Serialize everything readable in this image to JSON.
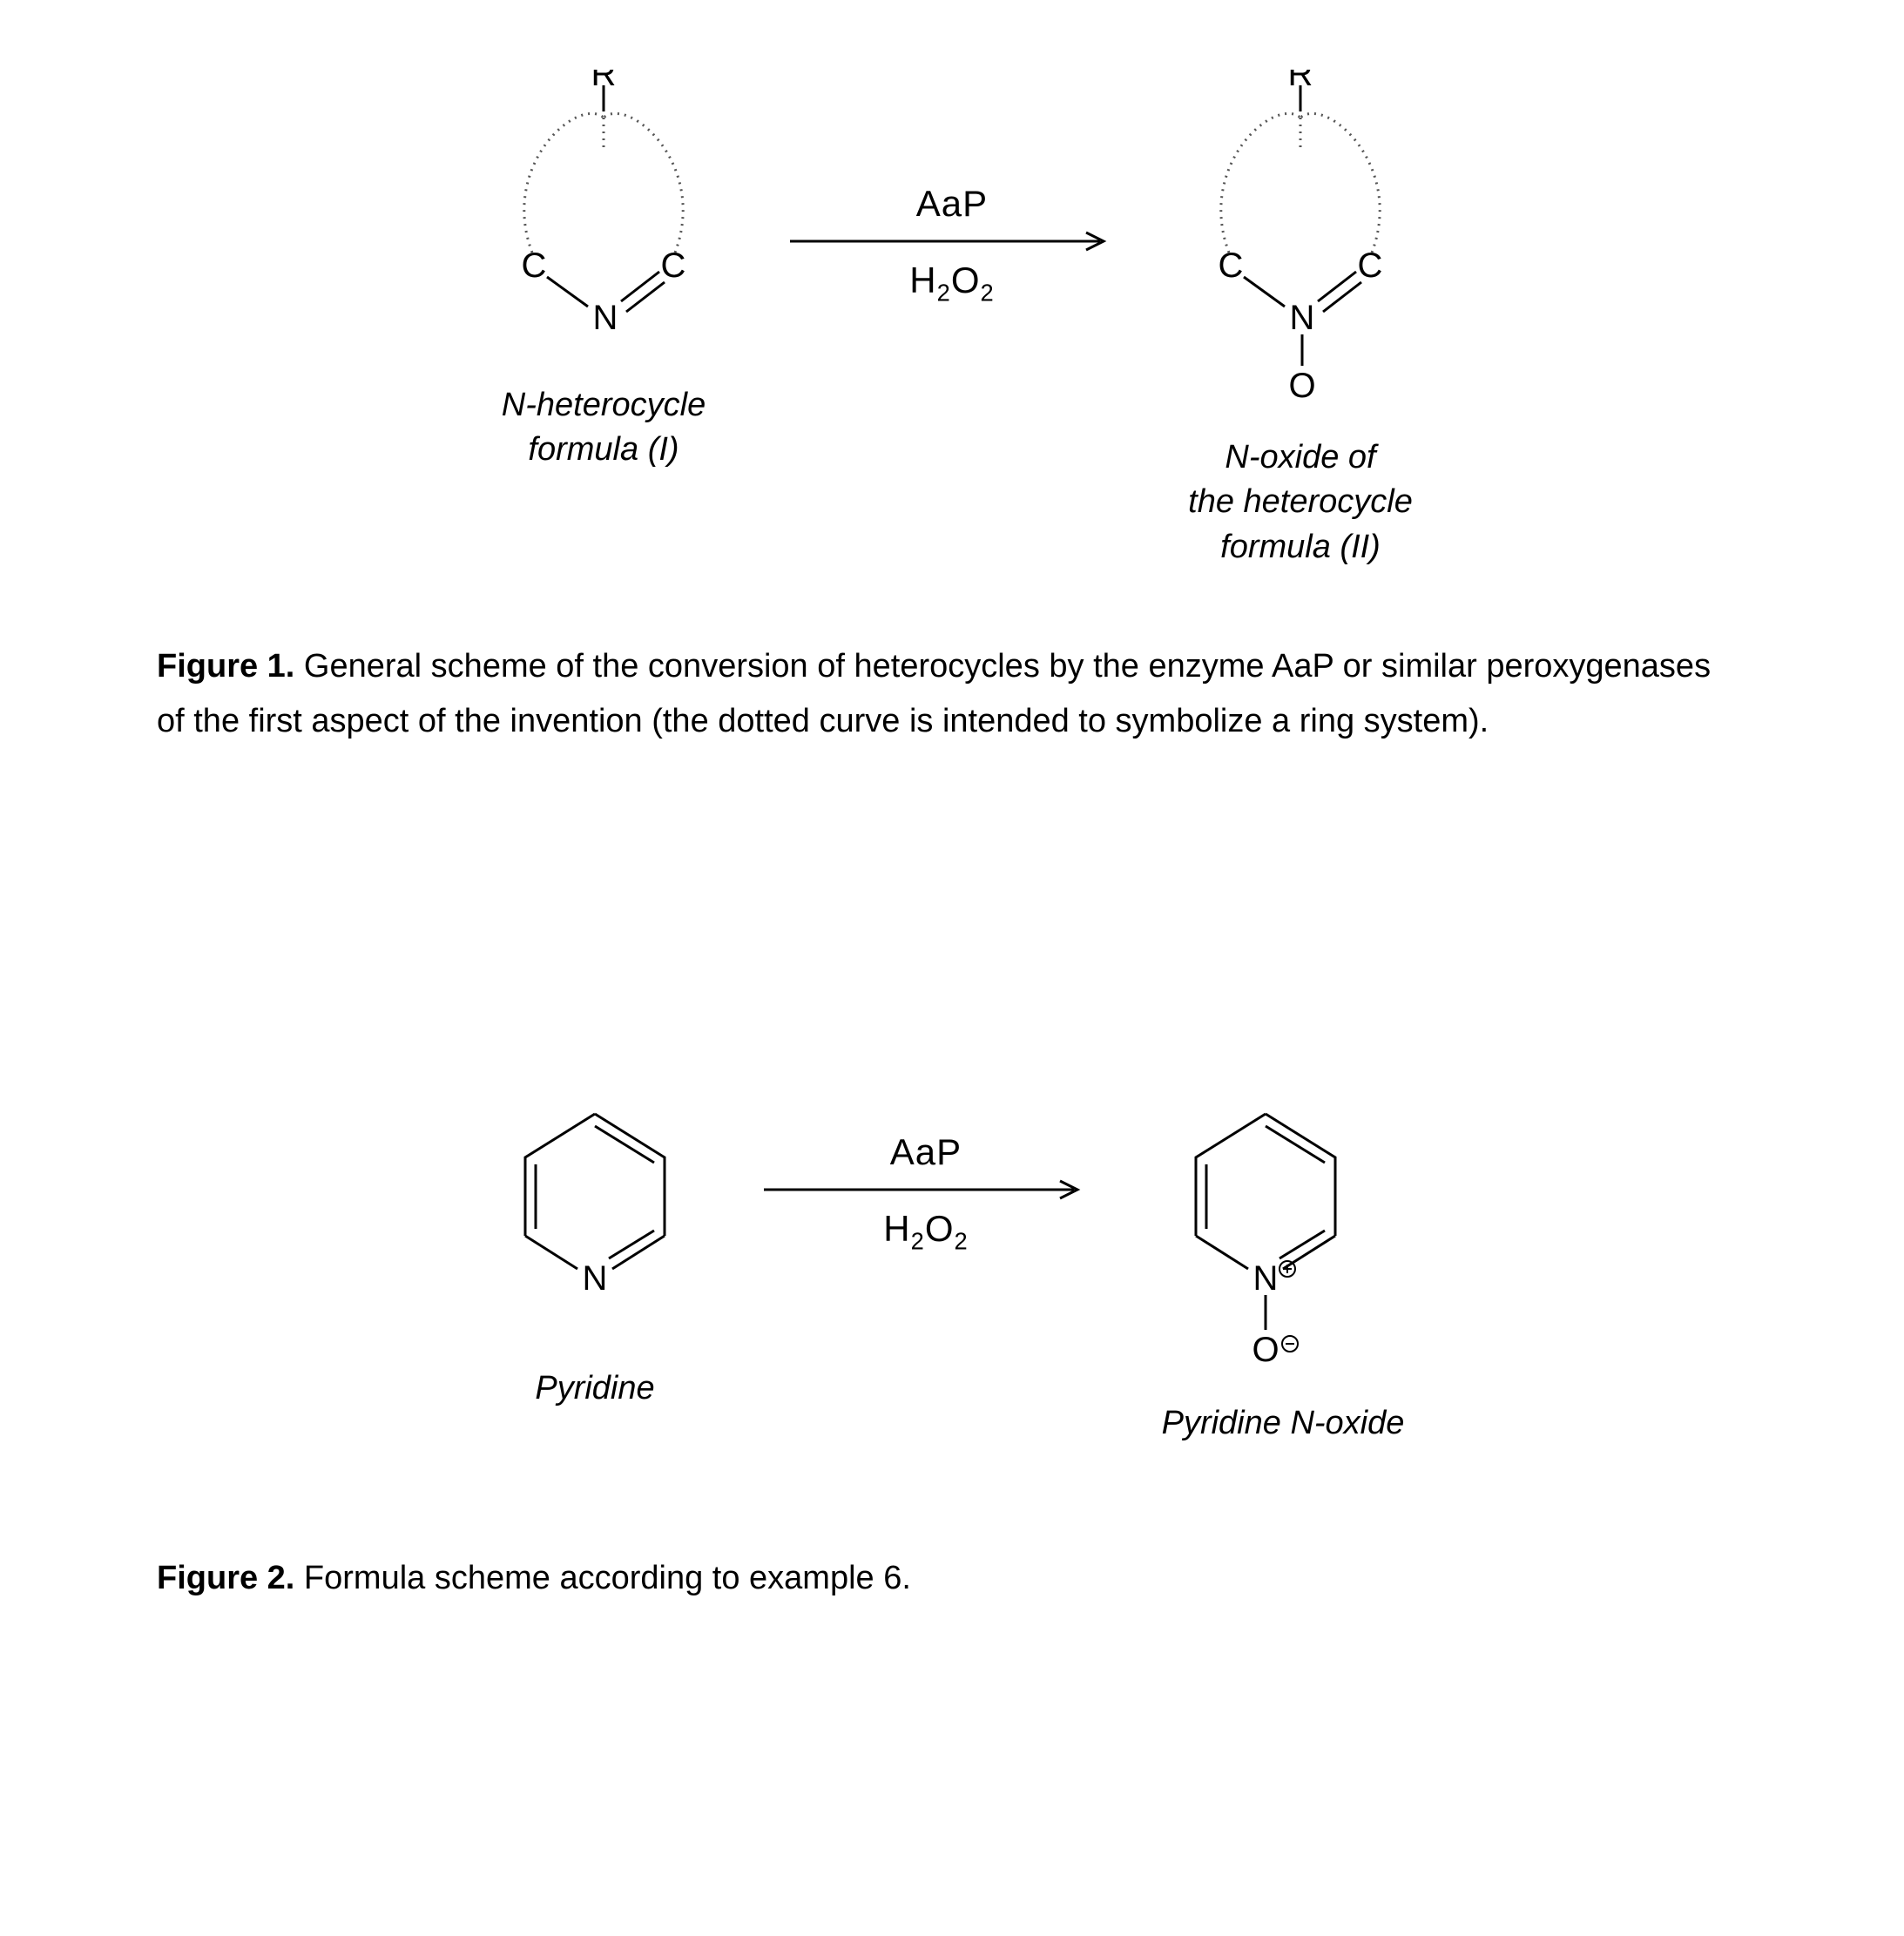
{
  "figure1": {
    "left_mol": {
      "label": "N-heterocycle\nformula (I)",
      "atoms": {
        "R": "R",
        "C_left": "C",
        "C_right": "C",
        "N": "N"
      }
    },
    "arrow": {
      "top": "AaP",
      "bottom_html": "H<sub>2</sub>O<sub>2</sub>",
      "length": 360,
      "stroke": "#000000",
      "stroke_width": 3
    },
    "right_mol": {
      "label": "N-oxide of\nthe heterocycle\nformula (II)",
      "atoms": {
        "R": "R",
        "C_left": "C",
        "C_right": "C",
        "N": "N",
        "O": "O"
      }
    },
    "caption_label": "Figure 1.",
    "caption_text": " General scheme of the conversion of heterocycles by the enzyme AaP or similar peroxygenases of the first aspect of  the invention (the dotted curve is intended to symbolize a ring system)."
  },
  "figure2": {
    "left_mol": {
      "label": "Pyridine",
      "N": "N"
    },
    "arrow": {
      "top": "AaP",
      "bottom_html": "H<sub>2</sub>O<sub>2</sub>",
      "length": 360,
      "stroke": "#000000",
      "stroke_width": 3
    },
    "right_mol": {
      "label": "Pyridine N-oxide",
      "N": "N",
      "O": "O",
      "charge_plus": "⊕",
      "charge_minus": "⊖"
    },
    "caption_label": "Figure 2.",
    "caption_text": " Formula scheme according to example 6."
  },
  "style": {
    "font_family": "Arial, Helvetica, sans-serif",
    "text_color": "#000000",
    "background": "#ffffff",
    "atom_font_size": 40,
    "label_font_size": 38,
    "caption_font_size": 38,
    "bond_stroke": "#000000",
    "bond_stroke_width": 3,
    "dotted_stroke": "#555555",
    "dotted_dash": "2,5"
  }
}
